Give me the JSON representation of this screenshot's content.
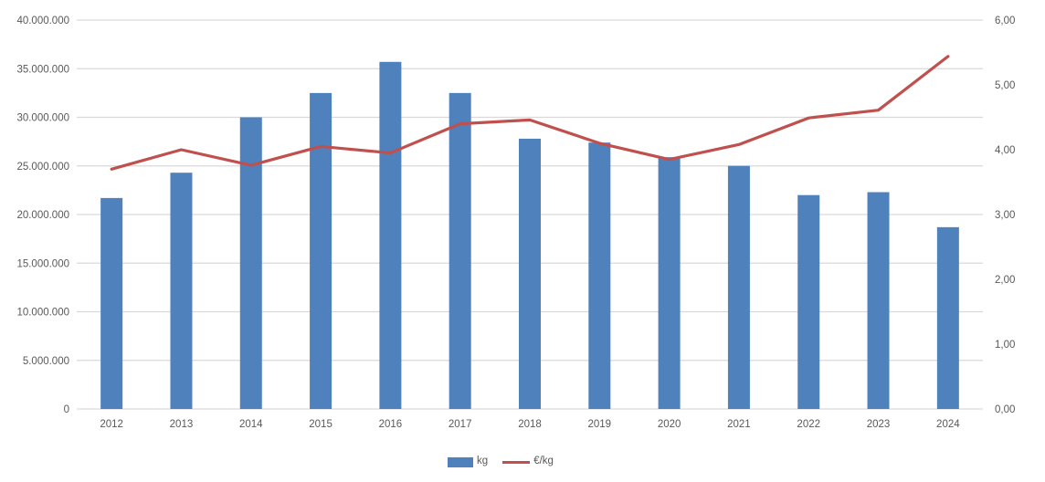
{
  "chart_data": {
    "type": "combo",
    "title": "",
    "categories": [
      "2012",
      "2013",
      "2014",
      "2015",
      "2016",
      "2017",
      "2018",
      "2019",
      "2020",
      "2021",
      "2022",
      "2023",
      "2024"
    ],
    "series": [
      {
        "name": "kg",
        "type": "bar",
        "axis": "left",
        "color": "#4F81BD",
        "values": [
          21700000,
          24300000,
          30000000,
          32500000,
          35700000,
          32500000,
          27800000,
          27400000,
          25900000,
          25000000,
          22000000,
          22300000,
          18700000
        ]
      },
      {
        "name": "€/kg",
        "type": "line",
        "axis": "right",
        "color": "#C0504D",
        "values": [
          3.7,
          4.0,
          3.76,
          4.05,
          3.95,
          4.4,
          4.46,
          4.1,
          3.85,
          4.08,
          4.49,
          4.61,
          5.44
        ]
      }
    ],
    "left_axis": {
      "min": 0,
      "max": 40000000,
      "tick_labels": [
        "0",
        "5.000.000",
        "10.000.000",
        "15.000.000",
        "20.000.000",
        "25.000.000",
        "30.000.000",
        "35.000.000",
        "40.000.000"
      ]
    },
    "right_axis": {
      "min": 0,
      "max": 6,
      "tick_labels": [
        "0,00",
        "1,00",
        "2,00",
        "3,00",
        "4,00",
        "5,00",
        "6,00"
      ]
    },
    "grid": true,
    "legend_position": "bottom"
  },
  "legend": {
    "items": [
      {
        "label": "kg",
        "swatch": "bar"
      },
      {
        "label": "€/kg",
        "swatch": "line"
      }
    ]
  },
  "colors": {
    "bar": "#4F81BD",
    "line": "#C0504D",
    "gridline": "#D9D9D9",
    "axis_text": "#595959",
    "background": "#FFFFFF"
  }
}
